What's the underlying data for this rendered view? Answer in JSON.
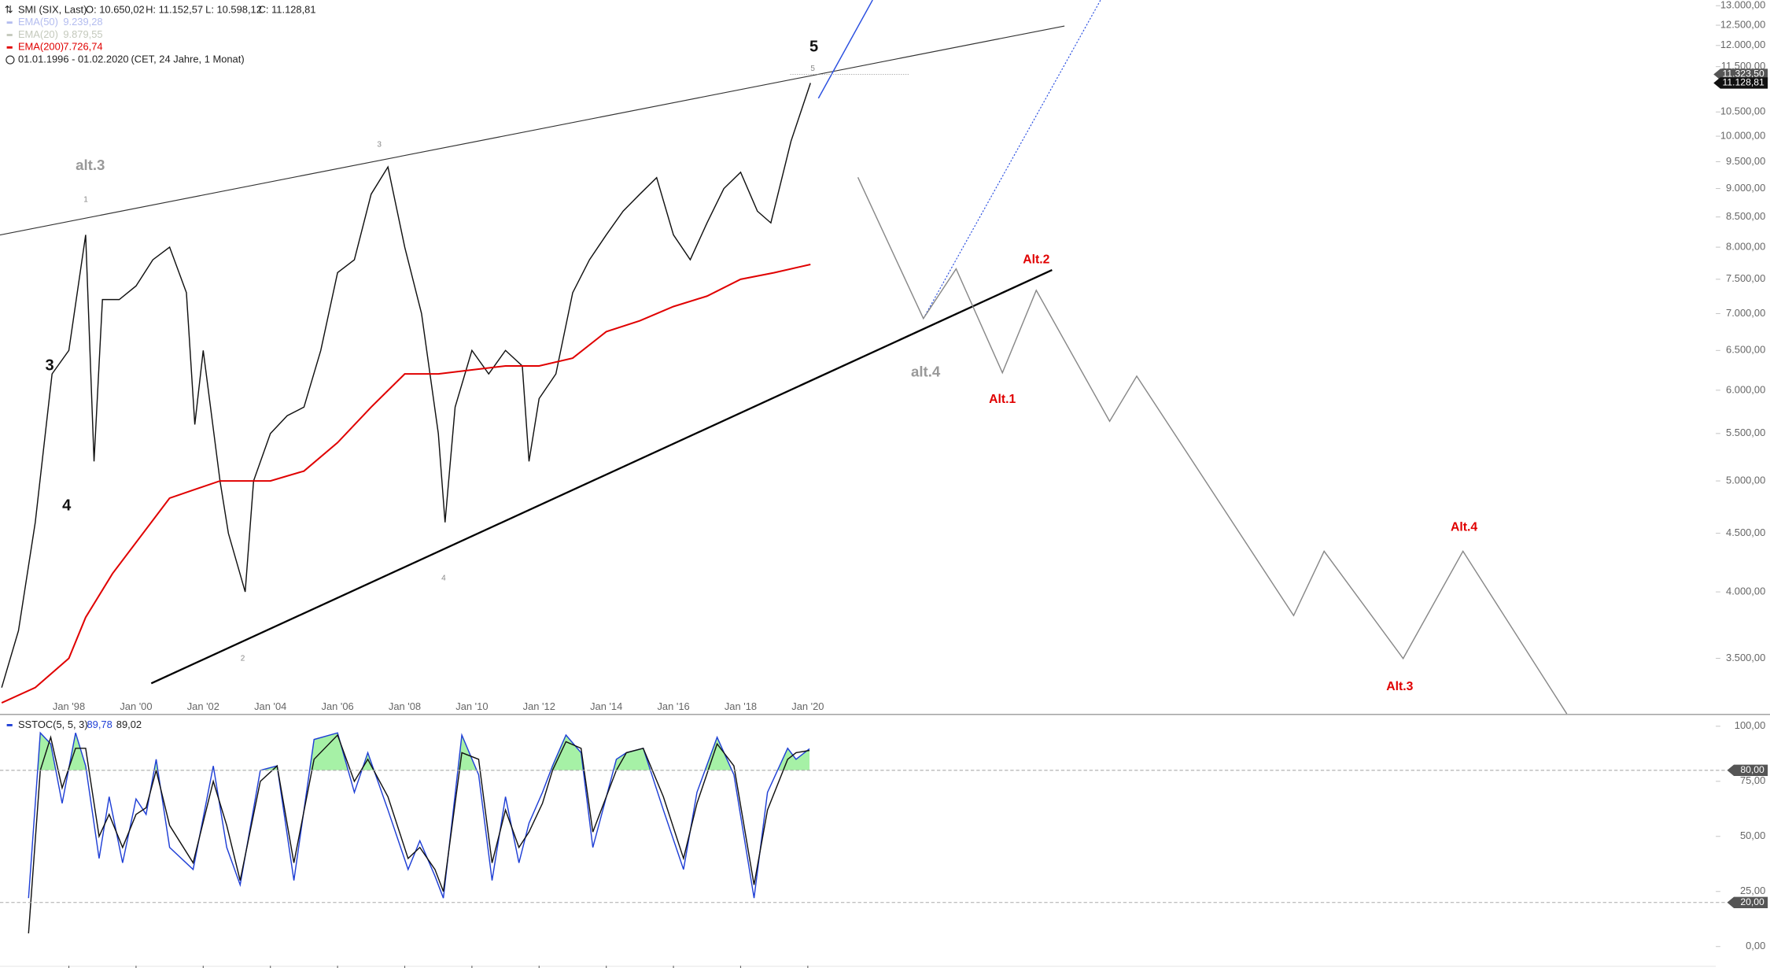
{
  "chart_data": [
    {
      "type": "line",
      "title": "SMI (SIX, Last)",
      "ohlc": [
        "O: 10.650,02",
        "H: 11.152,57",
        "L: 10.598,12",
        "C: 11.128,81"
      ],
      "period": [
        "01.01.1996 - 01.02.2020",
        "(CET, 24 Jahre, 1 Monat)"
      ],
      "inactive_series": [
        {
          "name": "EMA(50)",
          "color": "#b3bcef",
          "legend_value": "9.239,28"
        },
        {
          "name": "EMA(20)",
          "color": "#c4c9bc",
          "legend_value": "9.879,55"
        }
      ],
      "series": [
        {
          "color": "#111111",
          "x": [
            1996.0,
            1996.5,
            1997.0,
            1997.5,
            1998.0,
            1998.5,
            1998.75,
            1999.0,
            1999.5,
            2000.0,
            2000.5,
            2001.0,
            2001.5,
            2001.75,
            2002.0,
            2002.5,
            2002.75,
            2003.25,
            2003.5,
            2004.0,
            2004.5,
            2005.0,
            2005.5,
            2006.0,
            2006.5,
            2007.0,
            2007.5,
            2008.0,
            2008.5,
            2009.0,
            2009.2,
            2009.5,
            2010.0,
            2010.5,
            2011.0,
            2011.5,
            2011.7,
            2012.0,
            2012.5,
            2013.0,
            2013.5,
            2014.0,
            2014.5,
            2015.0,
            2015.5,
            2016.0,
            2016.5,
            2017.0,
            2017.5,
            2018.0,
            2018.5,
            2018.9,
            2019.5,
            2020.08
          ],
          "values": [
            3300,
            3700,
            4600,
            6200,
            6500,
            8200,
            5200,
            7200,
            7200,
            7400,
            7800,
            8000,
            7300,
            5600,
            6500,
            5000,
            4500,
            4000,
            5000,
            5500,
            5700,
            5800,
            6500,
            7600,
            7800,
            8900,
            9400,
            8000,
            7000,
            5500,
            4600,
            5800,
            6500,
            6200,
            6500,
            6300,
            5200,
            5900,
            6200,
            7300,
            7800,
            8200,
            8600,
            8900,
            9200,
            8200,
            7800,
            8400,
            9000,
            9300,
            8600,
            8400,
            9900,
            11128.81
          ]
        },
        {
          "name": "EMA(200)",
          "color": "#e00000",
          "legend_value": "7.726,74",
          "x": [
            1996.0,
            1997.0,
            1998.0,
            1998.5,
            1999.3,
            2001.0,
            2002.5,
            2004.0,
            2005.0,
            2006.0,
            2007.0,
            2008.0,
            2009.0,
            2010.0,
            2011.0,
            2012.0,
            2013.0,
            2014.0,
            2015.0,
            2016.0,
            2017.0,
            2018.0,
            2019.0,
            2020.08
          ],
          "values": [
            3200,
            3300,
            3500,
            3800,
            4150,
            4830,
            5000,
            5000,
            5100,
            5400,
            5800,
            6200,
            6200,
            6250,
            6300,
            6300,
            6400,
            6750,
            6900,
            7100,
            7250,
            7500,
            7600,
            7726.74
          ]
        }
      ],
      "xlim": [
        1995.95,
        2047
      ],
      "xticks": [
        {
          "value": 1998,
          "label": "Jan '98"
        },
        {
          "value": 2000,
          "label": "Jan '00"
        },
        {
          "value": 2002,
          "label": "Jan '02"
        },
        {
          "value": 2004,
          "label": "Jan '04"
        },
        {
          "value": 2006,
          "label": "Jan '06"
        },
        {
          "value": 2008,
          "label": "Jan '08"
        },
        {
          "value": 2010,
          "label": "Jan '10"
        },
        {
          "value": 2012,
          "label": "Jan '12"
        },
        {
          "value": 2014,
          "label": "Jan '14"
        },
        {
          "value": 2016,
          "label": "Jan '16"
        },
        {
          "value": 2018,
          "label": "Jan '18"
        },
        {
          "value": 2020,
          "label": "Jan '20"
        }
      ],
      "ylim": [
        3130,
        13150
      ],
      "log": true,
      "yticks": [
        {
          "value": 3500,
          "label": "3.500,00"
        },
        {
          "value": 4000,
          "label": "4.000,00"
        },
        {
          "value": 4500,
          "label": "4.500,00"
        },
        {
          "value": 5000,
          "label": "5.000,00"
        },
        {
          "value": 5500,
          "label": "5.500,00"
        },
        {
          "value": 6000,
          "label": "6.000,00"
        },
        {
          "value": 6500,
          "label": "6.500,00"
        },
        {
          "value": 7000,
          "label": "7.000,00"
        },
        {
          "value": 7500,
          "label": "7.500,00"
        },
        {
          "value": 8000,
          "label": "8.000,00"
        },
        {
          "value": 8500,
          "label": "8.500,00"
        },
        {
          "value": 9000,
          "label": "9.000,00"
        },
        {
          "value": 9500,
          "label": "9.500,00"
        },
        {
          "value": 10000,
          "label": "10.000,00"
        },
        {
          "value": 10500,
          "label": "10.500,00"
        },
        {
          "value": 11500,
          "label": "11.500,00"
        },
        {
          "value": 12000,
          "label": "12.000,00"
        },
        {
          "value": 12500,
          "label": "12.500,00"
        },
        {
          "value": 13000,
          "label": "13.000,00"
        }
      ],
      "price_tags": [
        {
          "value": 11323.5,
          "label": "11.323,50",
          "color": "#555555"
        },
        {
          "value": 11128.81,
          "label": "11.128,81",
          "color": "#111111"
        }
      ],
      "annotations": [
        {
          "text": "5"
        },
        {
          "text": "3"
        },
        {
          "text": "4"
        },
        {
          "text": "alt.3"
        },
        {
          "text": "alt.4"
        },
        {
          "text": "1"
        },
        {
          "text": "3"
        },
        {
          "text": "4"
        },
        {
          "text": "2"
        },
        {
          "text": "5"
        },
        {
          "text": "Alt.2"
        },
        {
          "text": "Alt.1"
        },
        {
          "text": "Alt.3"
        },
        {
          "text": "Alt.4"
        }
      ]
    },
    {
      "type": "line",
      "title": "SSTOC(5, 5, 3)",
      "legend_values": [
        "89,78",
        "89,02"
      ],
      "x": [
        1996.8,
        1997.15,
        1997.46,
        1997.8,
        1998.2,
        1998.5,
        1998.9,
        1999.2,
        1999.6,
        2000.0,
        2000.3,
        2000.6,
        2001.0,
        2001.7,
        2002.3,
        2002.7,
        2003.1,
        2003.7,
        2004.2,
        2004.7,
        2005.3,
        2006.0,
        2006.5,
        2006.9,
        2007.5,
        2008.1,
        2008.45,
        2008.9,
        2009.15,
        2009.7,
        2010.2,
        2010.6,
        2011.0,
        2011.4,
        2011.7,
        2012.1,
        2012.4,
        2012.8,
        2013.25,
        2013.6,
        2014.3,
        2014.6,
        2015.1,
        2015.7,
        2016.3,
        2016.7,
        2017.3,
        2017.8,
        2018.4,
        2018.8,
        2019.4,
        2019.65,
        2020.05
      ],
      "series": [
        {
          "color": "#1f3fd6",
          "values": [
            22,
            97,
            92,
            65,
            97,
            82,
            40,
            68,
            38,
            67,
            60,
            85,
            45,
            35,
            82,
            45,
            28,
            80,
            82,
            30,
            94,
            97,
            70,
            88,
            62,
            35,
            48,
            32,
            22,
            96,
            78,
            30,
            68,
            38,
            56,
            70,
            82,
            96,
            88,
            45,
            85,
            88,
            90,
            62,
            35,
            70,
            95,
            78,
            22,
            70,
            90,
            85,
            89.78
          ]
        },
        {
          "color": "#111111",
          "values": [
            6,
            80,
            95,
            72,
            90,
            90,
            50,
            60,
            45,
            60,
            63,
            80,
            55,
            38,
            75,
            55,
            30,
            75,
            82,
            38,
            85,
            96,
            75,
            85,
            68,
            40,
            45,
            35,
            25,
            88,
            85,
            38,
            62,
            45,
            52,
            65,
            80,
            93,
            90,
            52,
            80,
            88,
            90,
            68,
            40,
            65,
            92,
            82,
            28,
            62,
            85,
            88,
            89.02
          ]
        }
      ],
      "overbought_fill": "#90ee90",
      "xlim": [
        1995.95,
        2047
      ],
      "ylim": [
        -8.7,
        104.6
      ],
      "yticks": [
        {
          "value": 0,
          "label": "0,00"
        },
        {
          "value": 25,
          "label": "25,00"
        },
        {
          "value": 50,
          "label": "50,00"
        },
        {
          "value": 75,
          "label": "75,00"
        },
        {
          "value": 100,
          "label": "100,00"
        }
      ],
      "levels": [
        {
          "value": 80,
          "label": "80,00"
        },
        {
          "value": 20,
          "label": "20,00"
        }
      ]
    }
  ]
}
